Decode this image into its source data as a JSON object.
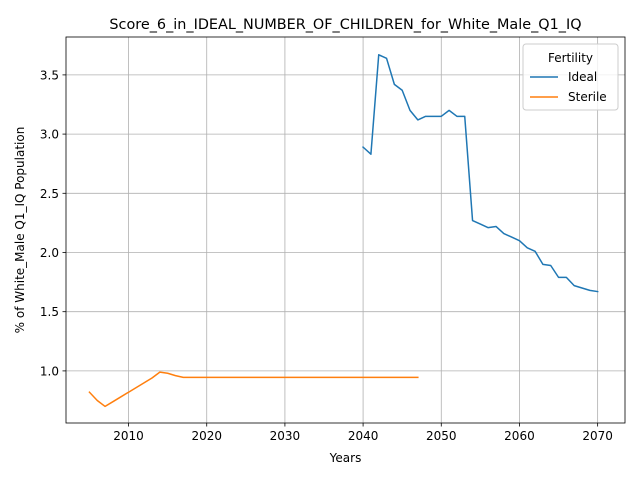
{
  "chart_data": {
    "type": "line",
    "title": "Score_6_in_IDEAL_NUMBER_OF_CHILDREN_for_White_Male_Q1_IQ",
    "xlabel": "Years",
    "ylabel": "% of White_Male Q1_IQ Population",
    "xlim": [
      2002,
      2073.5
    ],
    "ylim": [
      0.56,
      3.82
    ],
    "xticks": [
      "2010",
      "2020",
      "2030",
      "2040",
      "2050",
      "2060",
      "2070"
    ],
    "yticks": [
      "1.0",
      "1.5",
      "2.0",
      "2.5",
      "3.0",
      "3.5"
    ],
    "grid": true,
    "legend": {
      "title": "Fertility",
      "position": "top-right"
    },
    "series": [
      {
        "name": "Ideal",
        "color": "#1f77b4",
        "x": [
          2040,
          2041,
          2042,
          2043,
          2044,
          2045,
          2046,
          2047,
          2048,
          2049,
          2050,
          2051,
          2052,
          2053,
          2054,
          2055,
          2056,
          2057,
          2058,
          2059,
          2060,
          2061,
          2062,
          2063,
          2064,
          2065,
          2066,
          2067,
          2068,
          2069,
          2070
        ],
        "y": [
          2.89,
          2.83,
          3.67,
          3.64,
          3.42,
          3.37,
          3.2,
          3.12,
          3.15,
          3.15,
          3.15,
          3.2,
          3.15,
          3.15,
          2.27,
          2.24,
          2.21,
          2.22,
          2.16,
          2.13,
          2.1,
          2.04,
          2.01,
          1.9,
          1.89,
          1.79,
          1.79,
          1.72,
          1.7,
          1.68,
          1.67
        ]
      },
      {
        "name": "Sterile",
        "color": "#ff7f0e",
        "x": [
          2005,
          2006,
          2007,
          2008,
          2009,
          2010,
          2011,
          2012,
          2013,
          2014,
          2015,
          2016,
          2017,
          2018,
          2019,
          2020,
          2025,
          2030,
          2035,
          2040,
          2045,
          2047
        ],
        "y": [
          0.82,
          0.75,
          0.7,
          0.74,
          0.78,
          0.82,
          0.86,
          0.9,
          0.94,
          0.99,
          0.98,
          0.96,
          0.945,
          0.945,
          0.945,
          0.945,
          0.945,
          0.945,
          0.945,
          0.945,
          0.945,
          0.945
        ]
      }
    ]
  }
}
